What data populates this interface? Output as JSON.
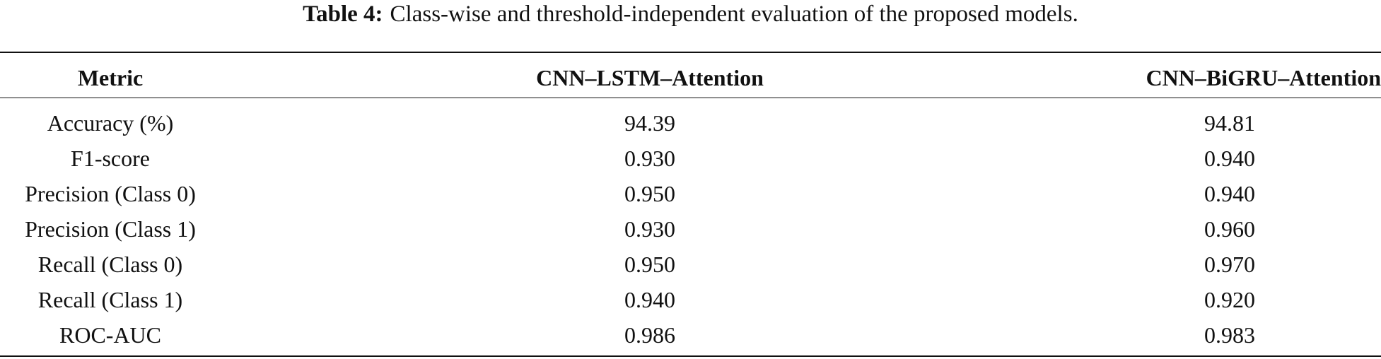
{
  "caption": {
    "label": "Table 4:",
    "text": "Class-wise and threshold-independent evaluation of the proposed models."
  },
  "table": {
    "header": [
      "Metric",
      "CNN–LSTM–Attention",
      "CNN–BiGRU–Attention"
    ],
    "rows": [
      [
        "Accuracy (%)",
        "94.39",
        "94.81"
      ],
      [
        "F1-score",
        "0.930",
        "0.940"
      ],
      [
        "Precision (Class 0)",
        "0.950",
        "0.940"
      ],
      [
        "Precision (Class 1)",
        "0.930",
        "0.960"
      ],
      [
        "Recall (Class 0)",
        "0.950",
        "0.970"
      ],
      [
        "Recall (Class 1)",
        "0.940",
        "0.920"
      ],
      [
        "ROC-AUC",
        "0.986",
        "0.983"
      ]
    ]
  }
}
